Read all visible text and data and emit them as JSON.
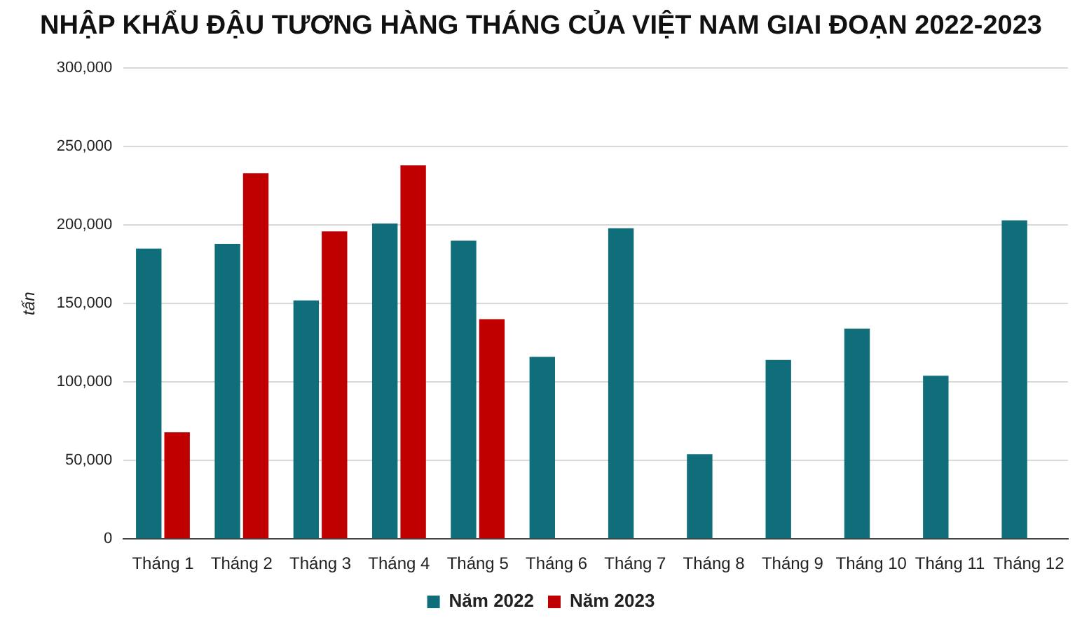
{
  "chart_data": {
    "type": "bar",
    "title": "NHẬP KHẨU ĐẬU TƯƠNG HÀNG THÁNG CỦA VIỆT NAM GIAI ĐOẠN 2022-2023",
    "ylabel": "tấn",
    "categories": [
      "Tháng 1",
      "Tháng 2",
      "Tháng 3",
      "Tháng 4",
      "Tháng 5",
      "Tháng 6",
      "Tháng 7",
      "Tháng 8",
      "Tháng 9",
      "Tháng 10",
      "Tháng 11",
      "Tháng 12"
    ],
    "series": [
      {
        "name": "Năm 2022",
        "color": "#0f6e7a",
        "values": [
          185000,
          188000,
          152000,
          201000,
          190000,
          116000,
          198000,
          54000,
          114000,
          134000,
          104000,
          203000
        ]
      },
      {
        "name": "Năm 2023",
        "color": "#c00000",
        "values": [
          68000,
          233000,
          196000,
          238000,
          140000,
          null,
          null,
          null,
          null,
          null,
          null,
          null
        ]
      }
    ],
    "ylim": [
      0,
      300000
    ],
    "yticks": [
      {
        "value": 0,
        "label": "0"
      },
      {
        "value": 50000,
        "label": "50,000"
      },
      {
        "value": 100000,
        "label": "100,000"
      },
      {
        "value": 150000,
        "label": "150,000"
      },
      {
        "value": 200000,
        "label": "200,000"
      },
      {
        "value": 250000,
        "label": "250,000"
      },
      {
        "value": 300000,
        "label": "300,000"
      }
    ],
    "grid": "y",
    "legend": "bottom"
  }
}
